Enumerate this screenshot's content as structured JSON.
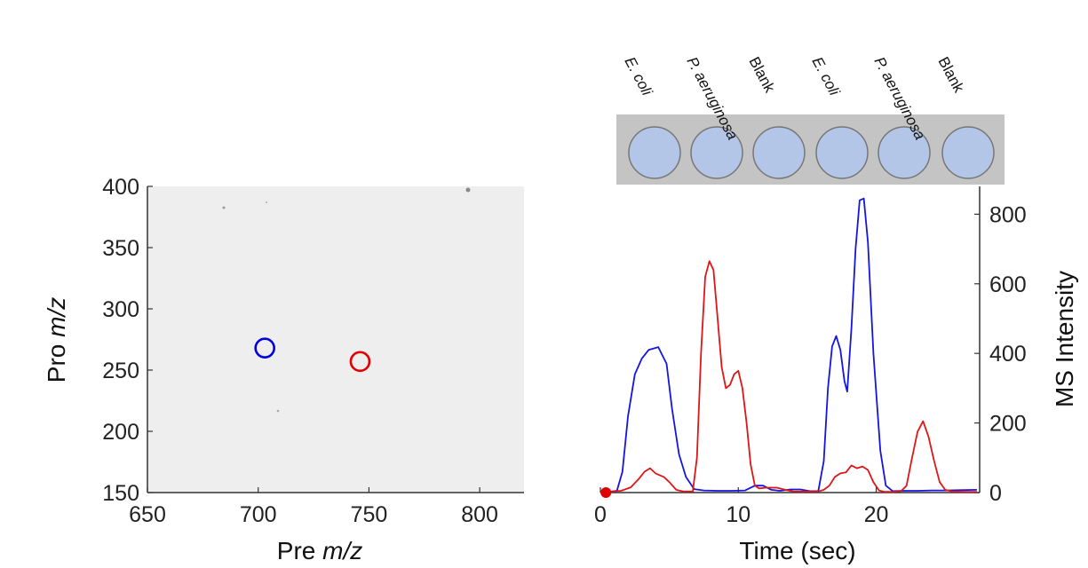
{
  "chart_data": [
    {
      "type": "scatter",
      "xlabel": {
        "prefix": "Pre ",
        "italic": "m/z"
      },
      "ylabel": {
        "prefix": "Pro ",
        "italic": "m/z"
      },
      "xlim": [
        650,
        820
      ],
      "ylim": [
        150,
        400
      ],
      "xticks": [
        "650",
        "700",
        "750",
        "800"
      ],
      "yticks": [
        "150",
        "200",
        "250",
        "300",
        "350",
        "400"
      ],
      "background": "#eeeeee",
      "markers": [
        {
          "x": 703,
          "y": 268,
          "color": "#0000dd"
        },
        {
          "x": 746,
          "y": 257,
          "color": "#e00000"
        }
      ]
    },
    {
      "type": "line",
      "xlabel": "Time (sec)",
      "ylabel": "MS Intensity",
      "xlim": [
        0,
        27.5
      ],
      "ylim": [
        0,
        880
      ],
      "xticks": [
        "0",
        "10",
        "20"
      ],
      "yticks": [
        "0",
        "200",
        "400",
        "600",
        "800"
      ],
      "y_axis_side": "right",
      "start_marker": {
        "x": 0.4,
        "y": 0,
        "color": "#e00000"
      },
      "series": [
        {
          "color": "#1515e0",
          "points": [
            [
              0.6,
              2
            ],
            [
              1.2,
              5
            ],
            [
              1.6,
              60
            ],
            [
              2.0,
              220
            ],
            [
              2.5,
              340
            ],
            [
              3.0,
              385
            ],
            [
              3.5,
              410
            ],
            [
              4.2,
              418
            ],
            [
              4.8,
              370
            ],
            [
              5.2,
              240
            ],
            [
              5.7,
              110
            ],
            [
              6.2,
              45
            ],
            [
              6.8,
              10
            ],
            [
              7.5,
              6
            ],
            [
              8.5,
              5
            ],
            [
              9.5,
              5
            ],
            [
              10.5,
              6
            ],
            [
              11.2,
              20
            ],
            [
              11.8,
              20
            ],
            [
              12.4,
              8
            ],
            [
              13.0,
              5
            ],
            [
              13.8,
              9
            ],
            [
              14.5,
              9
            ],
            [
              15.2,
              4
            ],
            [
              15.8,
              4
            ],
            [
              16.2,
              90
            ],
            [
              16.5,
              300
            ],
            [
              16.8,
              420
            ],
            [
              17.1,
              450
            ],
            [
              17.4,
              410
            ],
            [
              17.7,
              320
            ],
            [
              17.9,
              290
            ],
            [
              18.2,
              470
            ],
            [
              18.5,
              700
            ],
            [
              18.8,
              840
            ],
            [
              19.1,
              845
            ],
            [
              19.4,
              720
            ],
            [
              19.8,
              400
            ],
            [
              20.3,
              120
            ],
            [
              20.7,
              20
            ],
            [
              21.2,
              4
            ],
            [
              22.0,
              5
            ],
            [
              23.0,
              5
            ],
            [
              24.0,
              6
            ],
            [
              25.0,
              6
            ],
            [
              26.0,
              7
            ],
            [
              27.3,
              8
            ]
          ]
        },
        {
          "color": "#e01515",
          "points": [
            [
              0.6,
              2
            ],
            [
              1.5,
              5
            ],
            [
              2.2,
              15
            ],
            [
              2.8,
              40
            ],
            [
              3.2,
              60
            ],
            [
              3.6,
              70
            ],
            [
              4.0,
              55
            ],
            [
              4.6,
              45
            ],
            [
              5.0,
              30
            ],
            [
              5.5,
              8
            ],
            [
              6.0,
              3
            ],
            [
              6.7,
              3
            ],
            [
              7.0,
              100
            ],
            [
              7.3,
              400
            ],
            [
              7.6,
              620
            ],
            [
              7.9,
              665
            ],
            [
              8.2,
              640
            ],
            [
              8.5,
              500
            ],
            [
              8.8,
              360
            ],
            [
              9.1,
              300
            ],
            [
              9.4,
              310
            ],
            [
              9.7,
              340
            ],
            [
              10.0,
              350
            ],
            [
              10.3,
              300
            ],
            [
              10.6,
              200
            ],
            [
              10.9,
              80
            ],
            [
              11.2,
              20
            ],
            [
              11.5,
              12
            ],
            [
              12.0,
              14
            ],
            [
              12.8,
              14
            ],
            [
              13.5,
              7
            ],
            [
              14.0,
              3
            ],
            [
              15.0,
              3
            ],
            [
              15.8,
              3
            ],
            [
              16.2,
              8
            ],
            [
              16.6,
              20
            ],
            [
              17.0,
              45
            ],
            [
              17.4,
              55
            ],
            [
              17.8,
              58
            ],
            [
              18.2,
              78
            ],
            [
              18.6,
              70
            ],
            [
              19.0,
              75
            ],
            [
              19.4,
              65
            ],
            [
              19.8,
              30
            ],
            [
              20.2,
              6
            ],
            [
              20.6,
              2
            ],
            [
              21.2,
              2
            ],
            [
              21.8,
              4
            ],
            [
              22.2,
              20
            ],
            [
              22.6,
              100
            ],
            [
              23.0,
              175
            ],
            [
              23.4,
              205
            ],
            [
              23.8,
              160
            ],
            [
              24.2,
              90
            ],
            [
              24.6,
              30
            ],
            [
              25.0,
              8
            ],
            [
              25.5,
              3
            ],
            [
              26.5,
              2
            ],
            [
              27.3,
              2
            ]
          ]
        }
      ],
      "plate": {
        "background": "#c4c4c4",
        "well_fill": "#b3c6e7",
        "well_stroke": "#777777",
        "wells": [
          {
            "label": "E. coli"
          },
          {
            "label": "P. aeruginosa"
          },
          {
            "label": "Blank"
          },
          {
            "label": "E. coli"
          },
          {
            "label": "P. aeruginosa"
          },
          {
            "label": "Blank"
          }
        ]
      }
    }
  ]
}
